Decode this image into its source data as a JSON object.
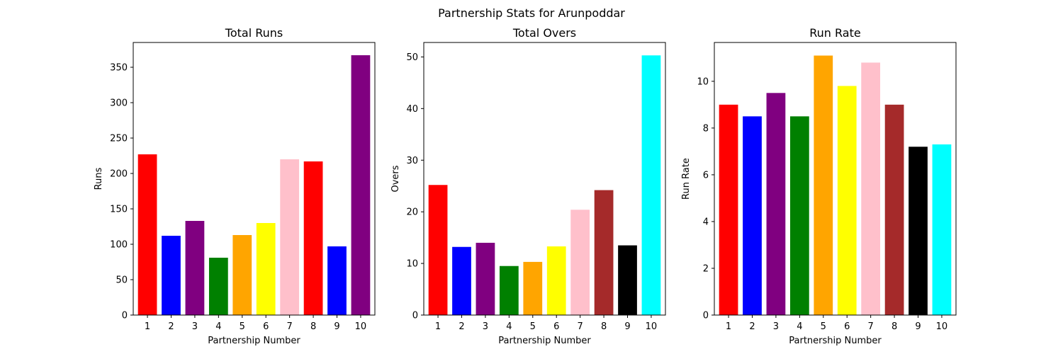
{
  "figure": {
    "suptitle": "Partnership Stats for Arunpoddar"
  },
  "chart_data": [
    {
      "type": "bar",
      "title": "Total Runs",
      "xlabel": "Partnership Number",
      "ylabel": "Runs",
      "categories": [
        "1",
        "2",
        "3",
        "4",
        "5",
        "6",
        "7",
        "8",
        "9",
        "10"
      ],
      "values": [
        227,
        112,
        133,
        81,
        113,
        130,
        220,
        217,
        97,
        367
      ],
      "colors": [
        "#ff0000",
        "#0000ff",
        "#800080",
        "#008000",
        "#ffa500",
        "#ffff00",
        "#ffc0cb",
        "#ff0000",
        "#0000ff",
        "#800080"
      ],
      "ylim": [
        0,
        385
      ],
      "yticks": [
        0,
        50,
        100,
        150,
        200,
        250,
        300,
        350
      ],
      "grid": false
    },
    {
      "type": "bar",
      "title": "Total Overs",
      "xlabel": "Partnership Number",
      "ylabel": "Overs",
      "categories": [
        "1",
        "2",
        "3",
        "4",
        "5",
        "6",
        "7",
        "8",
        "9",
        "10"
      ],
      "values": [
        25.2,
        13.2,
        14.0,
        9.5,
        10.3,
        13.3,
        20.4,
        24.2,
        13.5,
        50.3
      ],
      "colors": [
        "#ff0000",
        "#0000ff",
        "#800080",
        "#008000",
        "#ffa500",
        "#ffff00",
        "#ffc0cb",
        "#a52a2a",
        "#000000",
        "#00ffff"
      ],
      "ylim": [
        0,
        52.8
      ],
      "yticks": [
        0,
        10,
        20,
        30,
        40,
        50
      ],
      "grid": false
    },
    {
      "type": "bar",
      "title": "Run Rate",
      "xlabel": "Partnership Number",
      "ylabel": "Run Rate",
      "categories": [
        "1",
        "2",
        "3",
        "4",
        "5",
        "6",
        "7",
        "8",
        "9",
        "10"
      ],
      "values": [
        9.0,
        8.5,
        9.5,
        8.5,
        11.1,
        9.8,
        10.8,
        9.0,
        7.2,
        7.3
      ],
      "colors": [
        "#ff0000",
        "#0000ff",
        "#800080",
        "#008000",
        "#ffa500",
        "#ffff00",
        "#ffc0cb",
        "#a52a2a",
        "#000000",
        "#00ffff"
      ],
      "ylim": [
        0,
        11.66
      ],
      "yticks": [
        0,
        2,
        4,
        6,
        8,
        10
      ],
      "grid": false
    }
  ]
}
